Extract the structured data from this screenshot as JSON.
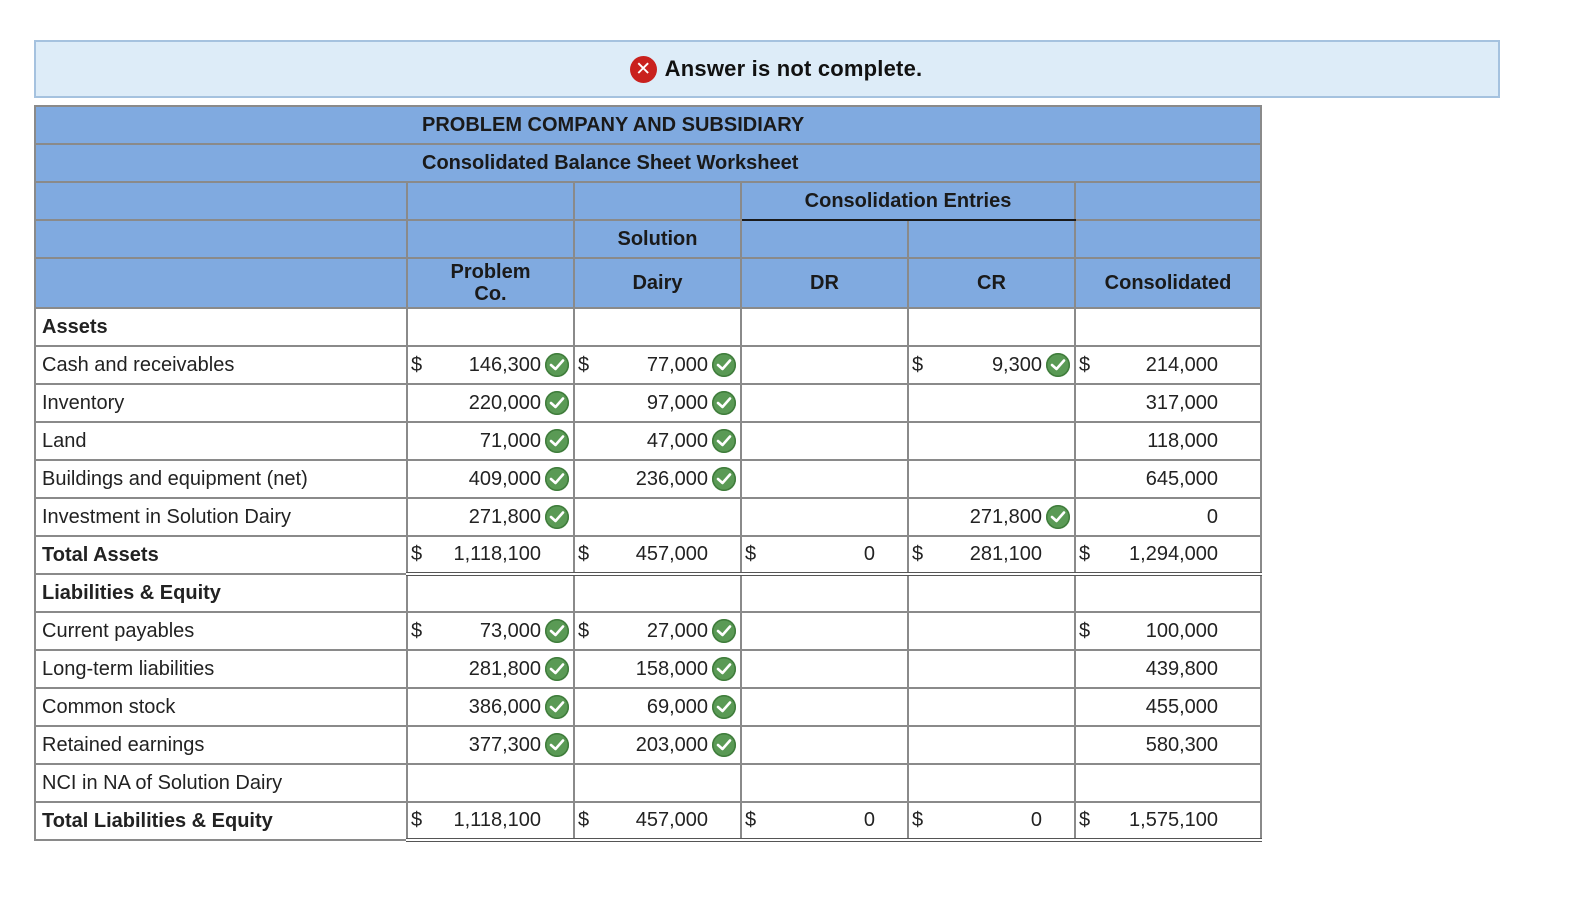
{
  "banner": {
    "icon": "close-circle-icon",
    "text": "Answer is not complete."
  },
  "header": {
    "company": "PROBLEM COMPANY AND SUBSIDIARY",
    "worksheet": "Consolidated Balance Sheet Worksheet",
    "consolidation_entries": "Consolidation Entries",
    "solution": "Solution",
    "problem": "Problem",
    "problem_co": "Co.",
    "dairy": "Dairy",
    "dr": "DR",
    "cr": "CR",
    "consolidated": "Consolidated"
  },
  "colors": {
    "header_bg": "#80aae0",
    "banner_bg": "#ddecf8",
    "check": "#5a9a55",
    "error": "#c9211e"
  },
  "rows": [
    {
      "label": "Assets",
      "bold": true,
      "section": true
    },
    {
      "label": "Cash and receivables",
      "problem": {
        "d": "$",
        "v": "146,300",
        "c": true
      },
      "dairy": {
        "d": "$",
        "v": "77,000",
        "c": true
      },
      "dr": {
        "d": "",
        "v": ""
      },
      "cr": {
        "d": "$",
        "v": "9,300",
        "c": true
      },
      "cons": {
        "d": "$",
        "v": "214,000"
      }
    },
    {
      "label": "Inventory",
      "problem": {
        "v": "220,000",
        "c": true
      },
      "dairy": {
        "v": "97,000",
        "c": true
      },
      "cons": {
        "v": "317,000"
      }
    },
    {
      "label": "Land",
      "problem": {
        "v": "71,000",
        "c": true
      },
      "dairy": {
        "v": "47,000",
        "c": true
      },
      "cons": {
        "v": "118,000"
      }
    },
    {
      "label": "Buildings and equipment (net)",
      "problem": {
        "v": "409,000",
        "c": true
      },
      "dairy": {
        "v": "236,000",
        "c": true
      },
      "cons": {
        "v": "645,000"
      }
    },
    {
      "label": "Investment in Solution Dairy",
      "problem": {
        "v": "271,800",
        "c": true
      },
      "cr": {
        "v": "271,800",
        "c": true
      },
      "cons": {
        "v": "0"
      }
    },
    {
      "label": "Total Assets",
      "bold": true,
      "total": true,
      "problem": {
        "d": "$",
        "v": "1,118,100"
      },
      "dairy": {
        "d": "$",
        "v": "457,000"
      },
      "dr": {
        "d": "$",
        "v": "0"
      },
      "cr": {
        "d": "$",
        "v": "281,100"
      },
      "cons": {
        "d": "$",
        "v": "1,294,000"
      }
    },
    {
      "label": "Liabilities & Equity",
      "bold": true,
      "section": true
    },
    {
      "label": "Current payables",
      "problem": {
        "d": "$",
        "v": "73,000",
        "c": true
      },
      "dairy": {
        "d": "$",
        "v": "27,000",
        "c": true
      },
      "cons": {
        "d": "$",
        "v": "100,000"
      }
    },
    {
      "label": "Long-term liabilities",
      "problem": {
        "v": "281,800",
        "c": true
      },
      "dairy": {
        "v": "158,000",
        "c": true
      },
      "cons": {
        "v": "439,800"
      }
    },
    {
      "label": "Common stock",
      "problem": {
        "v": "386,000",
        "c": true
      },
      "dairy": {
        "v": "69,000",
        "c": true
      },
      "cons": {
        "v": "455,000"
      }
    },
    {
      "label": "Retained earnings",
      "problem": {
        "v": "377,300",
        "c": true
      },
      "dairy": {
        "v": "203,000",
        "c": true
      },
      "cons": {
        "v": "580,300"
      }
    },
    {
      "label": "NCI in NA of Solution Dairy",
      "noborder_total": true
    },
    {
      "label": "Total Liabilities & Equity",
      "bold": true,
      "total": true,
      "problem": {
        "d": "$",
        "v": "1,118,100"
      },
      "dairy": {
        "d": "$",
        "v": "457,000"
      },
      "dr": {
        "d": "$",
        "v": "0"
      },
      "cr": {
        "d": "$",
        "v": "0"
      },
      "cons": {
        "d": "$",
        "v": "1,575,100"
      }
    }
  ]
}
